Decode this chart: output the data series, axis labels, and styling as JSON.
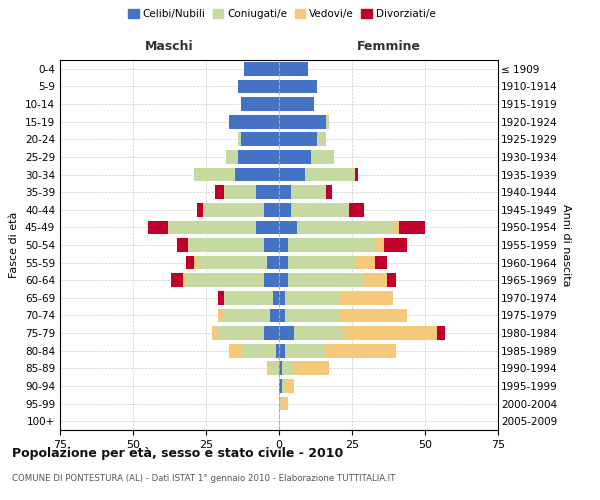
{
  "age_groups": [
    "0-4",
    "5-9",
    "10-14",
    "15-19",
    "20-24",
    "25-29",
    "30-34",
    "35-39",
    "40-44",
    "45-49",
    "50-54",
    "55-59",
    "60-64",
    "65-69",
    "70-74",
    "75-79",
    "80-84",
    "85-89",
    "90-94",
    "95-99",
    "100+"
  ],
  "birth_years": [
    "2005-2009",
    "2000-2004",
    "1995-1999",
    "1990-1994",
    "1985-1989",
    "1980-1984",
    "1975-1979",
    "1970-1974",
    "1965-1969",
    "1960-1964",
    "1955-1959",
    "1950-1954",
    "1945-1949",
    "1940-1944",
    "1935-1939",
    "1930-1934",
    "1925-1929",
    "1920-1924",
    "1915-1919",
    "1910-1914",
    "≤ 1909"
  ],
  "colors": {
    "celibi": "#4472C4",
    "coniugati": "#C5D9A0",
    "vedovi": "#F5C97A",
    "divorziati": "#C0002A"
  },
  "male": {
    "celibi": [
      12,
      14,
      13,
      17,
      13,
      14,
      15,
      8,
      5,
      8,
      5,
      4,
      5,
      2,
      3,
      5,
      1,
      0,
      0,
      0,
      0
    ],
    "coniugati": [
      0,
      0,
      0,
      0,
      1,
      4,
      14,
      11,
      21,
      30,
      26,
      24,
      27,
      17,
      16,
      16,
      12,
      3,
      0,
      0,
      0
    ],
    "vedovi": [
      0,
      0,
      0,
      0,
      0,
      0,
      0,
      0,
      0,
      0,
      0,
      1,
      1,
      0,
      2,
      2,
      4,
      1,
      0,
      0,
      0
    ],
    "divorziati": [
      0,
      0,
      0,
      0,
      0,
      0,
      0,
      3,
      2,
      7,
      4,
      3,
      4,
      2,
      0,
      0,
      0,
      0,
      0,
      0,
      0
    ]
  },
  "female": {
    "nubili": [
      10,
      13,
      12,
      16,
      13,
      11,
      9,
      4,
      4,
      6,
      3,
      3,
      3,
      2,
      2,
      5,
      2,
      1,
      1,
      0,
      0
    ],
    "coniugate": [
      0,
      0,
      0,
      1,
      3,
      8,
      17,
      12,
      20,
      33,
      30,
      23,
      26,
      19,
      19,
      17,
      14,
      4,
      1,
      1,
      0
    ],
    "vedove": [
      0,
      0,
      0,
      0,
      0,
      0,
      0,
      0,
      0,
      2,
      3,
      7,
      8,
      18,
      23,
      32,
      24,
      12,
      3,
      2,
      0
    ],
    "divorziate": [
      0,
      0,
      0,
      0,
      0,
      0,
      1,
      2,
      5,
      9,
      8,
      4,
      3,
      0,
      0,
      3,
      0,
      0,
      0,
      0,
      0
    ]
  },
  "title": "Popolazione per età, sesso e stato civile - 2010",
  "subtitle": "COMUNE DI PONTESTURA (AL) - Dati ISTAT 1° gennaio 2010 - Elaborazione TUTTITALIA.IT",
  "ylabel_left": "Fasce di età",
  "ylabel_right": "Anni di nascita",
  "xlabel_maschi": "Maschi",
  "xlabel_femmine": "Femmine",
  "xlim": 75,
  "legend_labels": [
    "Celibi/Nubili",
    "Coniugati/e",
    "Vedovi/e",
    "Divorziati/e"
  ],
  "bg_color": "#FFFFFF",
  "grid_color": "#CCCCCC"
}
